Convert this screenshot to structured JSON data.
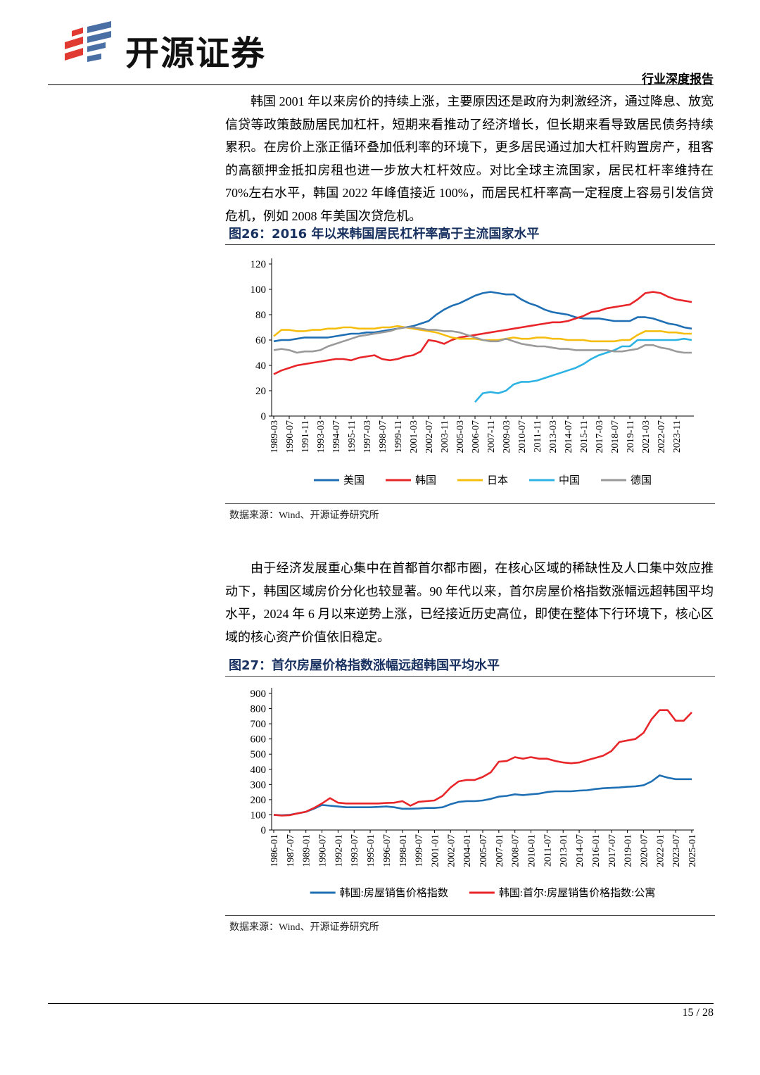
{
  "header": {
    "brand": "开源证券",
    "report_type": "行业深度报告"
  },
  "paragraphs": [
    "韩国 2001 年以来房价的持续上涨，主要原因还是政府为刺激经济，通过降息、放宽信贷等政策鼓励居民加杠杆，短期来看推动了经济增长，但长期来看导致居民债务持续累积。在房价上涨正循环叠加低利率的环境下，更多居民通过加大杠杆购置房产，租客的高额押金抵扣房租也进一步放大杠杆效应。对比全球主流国家，居民杠杆率维持在 70%左右水平，韩国 2022 年峰值接近 100%，而居民杠杆率高一定程度上容易引发信贷危机，例如 2008 年美国次贷危机。",
    "由于经济发展重心集中在首都首尔都市圈，在核心区域的稀缺性及人口集中效应推动下，韩国区域房价分化也较显著。90 年代以来，首尔房屋价格指数涨幅远超韩国平均水平，2024 年 6 月以来逆势上涨，已经接近历史高位，即使在整体下行环境下，核心区域的核心资产价值依旧稳定。"
  ],
  "figures": [
    {
      "title": "图26：2016 年以来韩国居民杠杆率高于主流国家水平",
      "source": "数据来源：Wind、开源证券研究所"
    },
    {
      "title": "图27：首尔房屋价格指数涨幅远超韩国平均水平",
      "source": "数据来源：Wind、开源证券研究所"
    }
  ],
  "chart_data": [
    {
      "type": "line",
      "legend": "bottom",
      "categories": [
        "1989-03",
        null,
        "1990-07",
        null,
        "1991-11",
        null,
        "1993-03",
        null,
        "1994-07",
        null,
        "1995-11",
        null,
        "1997-03",
        null,
        "1998-07",
        null,
        "1999-11",
        null,
        "2001-03",
        null,
        "2002-07",
        null,
        "2003-11",
        null,
        "2005-03",
        null,
        "2006-07",
        null,
        "2007-11",
        null,
        "2009-03",
        null,
        "2010-07",
        null,
        "2011-11",
        null,
        "2013-03",
        null,
        "2014-07",
        null,
        "2015-11",
        null,
        "2017-03",
        null,
        "2018-07",
        null,
        "2019-11",
        null,
        "2021-03",
        null,
        "2022-07",
        null,
        "2023-11",
        null,
        null
      ],
      "ylim": [
        0,
        120
      ],
      "yticks": [
        0,
        20,
        40,
        60,
        80,
        100,
        120
      ],
      "series": [
        {
          "name": "美国",
          "color": "#1f6fb4",
          "values": [
            59,
            60,
            60,
            61,
            62,
            62,
            62,
            62,
            63,
            64,
            65,
            65,
            66,
            66,
            67,
            68,
            69,
            70,
            71,
            73,
            75,
            80,
            84,
            87,
            89,
            92,
            95,
            97,
            98,
            97,
            96,
            96,
            92,
            89,
            87,
            84,
            82,
            81,
            80,
            78,
            77,
            77,
            77,
            76,
            75,
            75,
            75,
            78,
            78,
            77,
            75,
            73,
            72,
            70,
            69
          ]
        },
        {
          "name": "韩国",
          "color": "#e8262a",
          "values": [
            33,
            36,
            38,
            40,
            41,
            42,
            43,
            44,
            45,
            45,
            44,
            46,
            47,
            48,
            45,
            44,
            45,
            47,
            48,
            51,
            60,
            59,
            57,
            60,
            62,
            63,
            64,
            65,
            66,
            67,
            68,
            69,
            70,
            71,
            72,
            73,
            74,
            74,
            75,
            77,
            79,
            82,
            83,
            85,
            86,
            87,
            88,
            92,
            97,
            98,
            97,
            94,
            92,
            91,
            90
          ]
        },
        {
          "name": "日本",
          "color": "#f5be0f",
          "values": [
            63,
            68,
            68,
            67,
            67,
            68,
            68,
            69,
            69,
            70,
            70,
            69,
            69,
            69,
            70,
            70,
            71,
            70,
            69,
            68,
            67,
            66,
            64,
            62,
            61,
            61,
            61,
            60,
            60,
            60,
            61,
            62,
            61,
            61,
            62,
            62,
            61,
            61,
            60,
            60,
            60,
            59,
            59,
            59,
            59,
            60,
            60,
            64,
            67,
            67,
            67,
            66,
            66,
            65,
            65
          ]
        },
        {
          "name": "中国",
          "color": "#2db3e3",
          "values": [
            null,
            null,
            null,
            null,
            null,
            null,
            null,
            null,
            null,
            null,
            null,
            null,
            null,
            null,
            null,
            null,
            null,
            null,
            null,
            null,
            null,
            null,
            null,
            null,
            null,
            null,
            11,
            18,
            19,
            18,
            20,
            25,
            27,
            27,
            28,
            30,
            32,
            34,
            36,
            38,
            41,
            45,
            48,
            50,
            52,
            55,
            55,
            60,
            60,
            60,
            60,
            60,
            60,
            61,
            60
          ]
        },
        {
          "name": "德国",
          "color": "#9a9a9a",
          "values": [
            52,
            53,
            52,
            50,
            51,
            51,
            52,
            55,
            57,
            59,
            61,
            63,
            64,
            65,
            66,
            67,
            69,
            70,
            70,
            69,
            68,
            68,
            67,
            67,
            66,
            64,
            62,
            60,
            59,
            59,
            61,
            59,
            57,
            56,
            55,
            55,
            54,
            53,
            53,
            52,
            52,
            52,
            52,
            52,
            51,
            51,
            52,
            53,
            56,
            56,
            54,
            53,
            51,
            50,
            50
          ]
        }
      ]
    },
    {
      "type": "line",
      "legend": "bottom",
      "categories": [
        "1986-01",
        null,
        "1987-07",
        null,
        "1989-01",
        null,
        "1990-07",
        null,
        "1992-01",
        null,
        "1993-07",
        null,
        "1995-01",
        null,
        "1996-07",
        null,
        "1998-01",
        null,
        "1999-07",
        null,
        "2001-01",
        null,
        "2002-07",
        null,
        "2004-01",
        null,
        "2005-07",
        null,
        "2007-01",
        null,
        "2008-07",
        null,
        "2010-01",
        null,
        "2011-07",
        null,
        "2013-01",
        null,
        "2014-07",
        null,
        "2016-01",
        null,
        "2017-07",
        null,
        "2019-01",
        null,
        "2020-07",
        null,
        "2022-01",
        null,
        "2023-07",
        null,
        "2025-01"
      ],
      "ylim": [
        0,
        900
      ],
      "yticks": [
        0,
        100,
        200,
        300,
        400,
        500,
        600,
        700,
        800,
        900
      ],
      "series": [
        {
          "name": "韩国:房屋销售价格指数",
          "color": "#1f6fb4",
          "values": [
            100,
            97,
            100,
            110,
            120,
            140,
            165,
            160,
            155,
            150,
            150,
            150,
            150,
            152,
            155,
            150,
            140,
            140,
            142,
            145,
            145,
            150,
            170,
            185,
            190,
            190,
            195,
            205,
            220,
            225,
            235,
            230,
            235,
            240,
            250,
            255,
            255,
            255,
            260,
            262,
            270,
            275,
            278,
            280,
            285,
            288,
            295,
            320,
            360,
            345,
            335,
            335,
            335
          ]
        },
        {
          "name": "韩国:首尔:房屋销售价格指数:公寓",
          "color": "#e8262a",
          "values": [
            100,
            95,
            98,
            110,
            120,
            145,
            175,
            210,
            180,
            175,
            175,
            175,
            175,
            175,
            178,
            180,
            190,
            160,
            185,
            190,
            195,
            225,
            280,
            320,
            330,
            330,
            350,
            380,
            450,
            455,
            480,
            470,
            480,
            470,
            470,
            455,
            445,
            440,
            445,
            460,
            475,
            490,
            520,
            580,
            590,
            600,
            640,
            730,
            790,
            790,
            720,
            720,
            775
          ]
        }
      ]
    }
  ],
  "footer": {
    "page": "15 / 28"
  }
}
